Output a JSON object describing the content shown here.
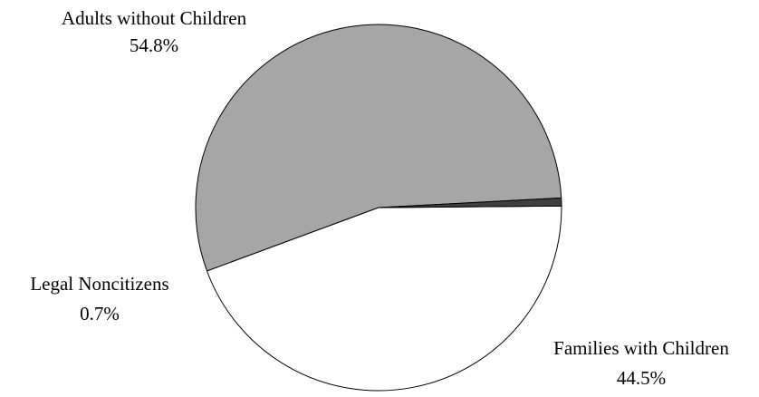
{
  "chart_data": {
    "type": "pie",
    "slices": [
      {
        "label": "Adults without Children",
        "value": 54.8,
        "value_label": "54.8%",
        "color": "#a6a6a6"
      },
      {
        "label": "Families with Children",
        "value": 44.5,
        "value_label": "44.5%",
        "color": "#ffffff"
      },
      {
        "label": "Legal Noncitizens",
        "value": 0.7,
        "value_label": "0.7%",
        "color": "#404040"
      }
    ],
    "outline_color": "#000000"
  }
}
